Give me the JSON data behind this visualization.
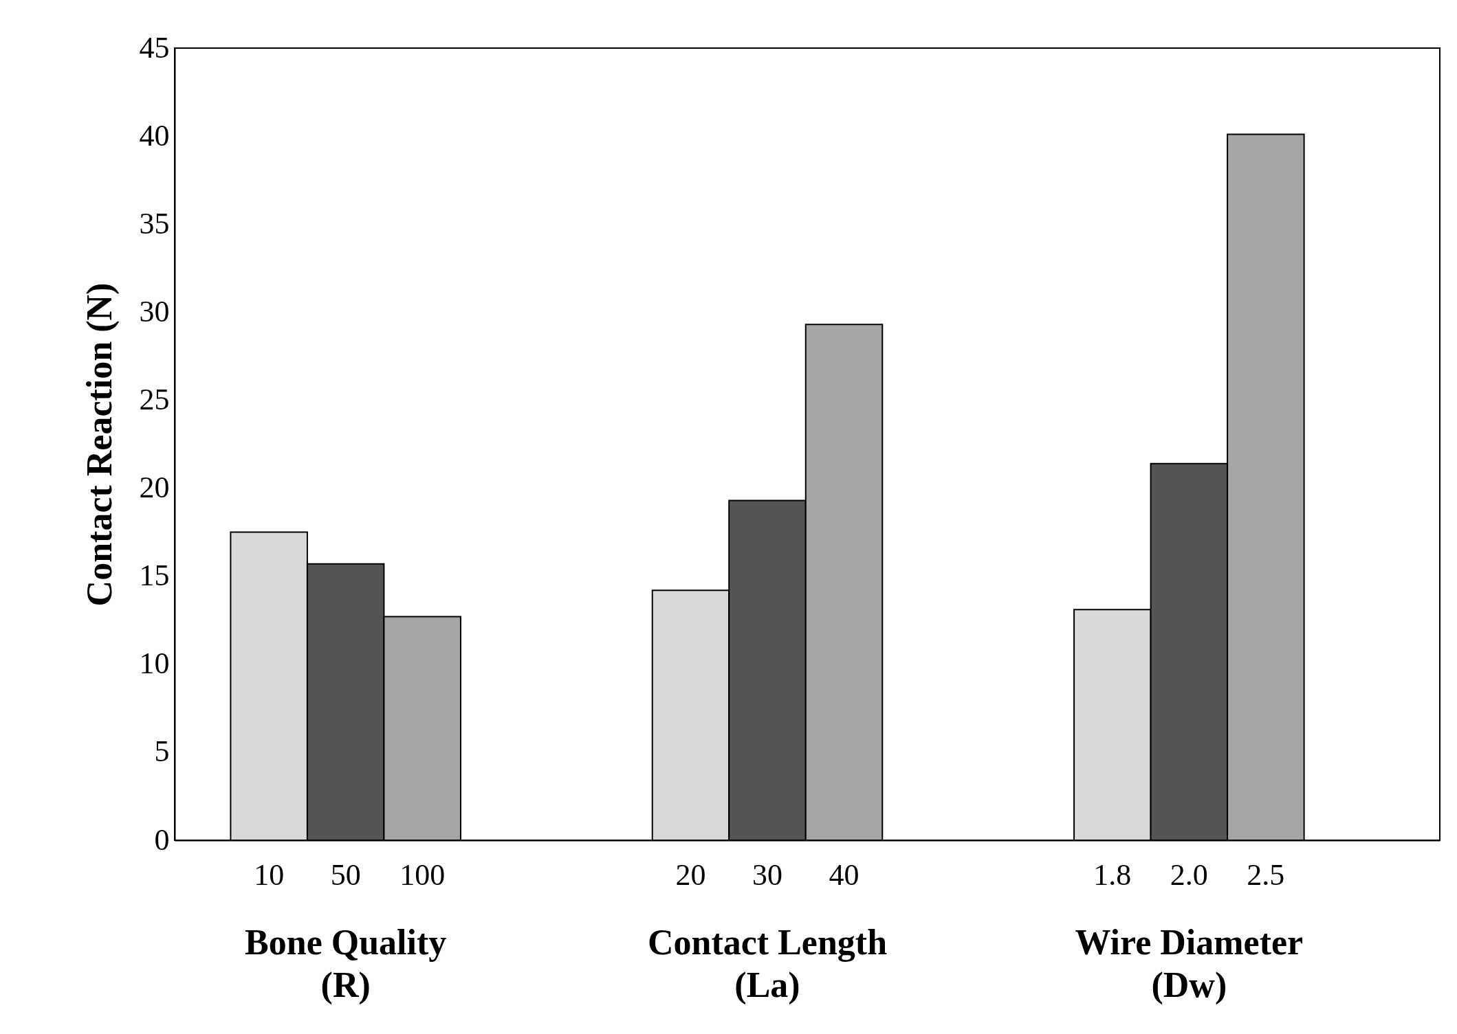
{
  "chart_data": {
    "type": "bar",
    "ylabel": "Contact Reaction (N)",
    "categories": [
      "10",
      "50",
      "100",
      "20",
      "30",
      "40",
      "1.8",
      "2.0",
      "2.5"
    ],
    "values": [
      17.5,
      15.7,
      12.7,
      14.2,
      19.3,
      29.3,
      13.1,
      21.4,
      40.1
    ],
    "colors": [
      "#d9d9d9",
      "#555555",
      "#a6a6a6",
      "#d9d9d9",
      "#555555",
      "#a6a6a6",
      "#d9d9d9",
      "#555555",
      "#a6a6a6"
    ],
    "ylim": [
      0,
      45
    ],
    "yticks": [
      0,
      5,
      10,
      15,
      20,
      25,
      30,
      35,
      40,
      45
    ],
    "annotations": [
      "Bone Quality\n(R)",
      "Contact Length\n(La)",
      "Wire Diameter\n(Dw)"
    ],
    "grid": false
  }
}
